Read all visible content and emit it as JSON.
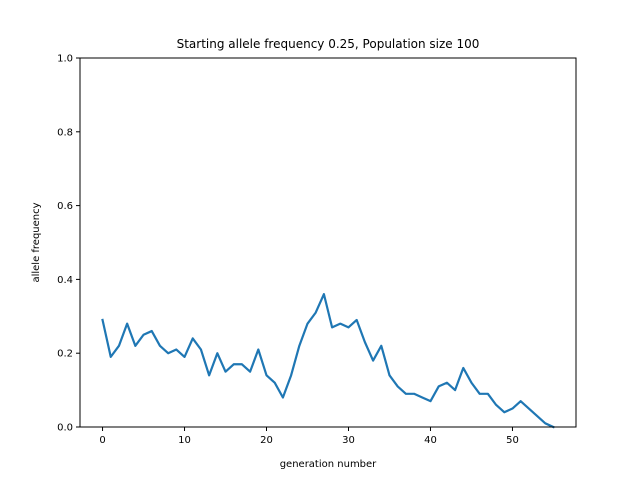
{
  "chart_data": {
    "type": "line",
    "title": "Starting allele frequency 0.25, Population size 100",
    "xlabel": "generation number",
    "ylabel": "allele frequency",
    "xlim": [
      -2.75,
      57.75
    ],
    "ylim": [
      0.0,
      1.0
    ],
    "xticks": [
      0,
      10,
      20,
      30,
      40,
      50
    ],
    "xtick_labels": [
      "0",
      "10",
      "20",
      "30",
      "40",
      "50"
    ],
    "yticks": [
      0.0,
      0.2,
      0.4,
      0.6,
      0.8,
      1.0
    ],
    "ytick_labels": [
      "0.0",
      "0.2",
      "0.4",
      "0.6",
      "0.8",
      "1.0"
    ],
    "grid": false,
    "series": [
      {
        "color": "#1f77b4",
        "x": [
          0,
          1,
          2,
          3,
          4,
          5,
          6,
          7,
          8,
          9,
          10,
          11,
          12,
          13,
          14,
          15,
          16,
          17,
          18,
          19,
          20,
          21,
          22,
          23,
          24,
          25,
          26,
          27,
          28,
          29,
          30,
          31,
          32,
          33,
          34,
          35,
          36,
          37,
          38,
          39,
          40,
          41,
          42,
          43,
          44,
          45,
          46,
          47,
          48,
          49,
          50,
          51,
          52,
          53,
          54,
          55
        ],
        "values": [
          0.29,
          0.19,
          0.22,
          0.28,
          0.22,
          0.25,
          0.26,
          0.22,
          0.2,
          0.21,
          0.19,
          0.24,
          0.21,
          0.14,
          0.2,
          0.15,
          0.17,
          0.17,
          0.15,
          0.21,
          0.14,
          0.12,
          0.08,
          0.14,
          0.22,
          0.28,
          0.31,
          0.36,
          0.27,
          0.28,
          0.27,
          0.29,
          0.23,
          0.18,
          0.22,
          0.14,
          0.11,
          0.09,
          0.09,
          0.08,
          0.07,
          0.11,
          0.12,
          0.1,
          0.16,
          0.12,
          0.09,
          0.09,
          0.06,
          0.04,
          0.05,
          0.07,
          0.05,
          0.03,
          0.01,
          0.0
        ]
      }
    ]
  }
}
